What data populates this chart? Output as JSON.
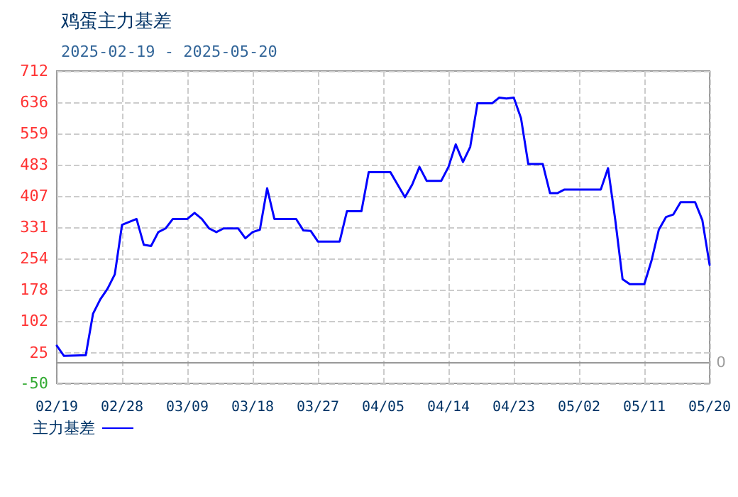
{
  "chart_data": {
    "type": "line",
    "title": "鸡蛋主力基差",
    "subtitle": "2025-02-19 - 2025-05-20",
    "x": [
      "2025-02-19",
      "2025-02-20",
      "2025-02-23",
      "2025-02-24",
      "2025-02-25",
      "2025-02-26",
      "2025-02-27",
      "2025-02-28",
      "2025-03-02",
      "2025-03-03",
      "2025-03-04",
      "2025-03-05",
      "2025-03-06",
      "2025-03-07",
      "2025-03-09",
      "2025-03-10",
      "2025-03-11",
      "2025-03-12",
      "2025-03-13",
      "2025-03-14",
      "2025-03-16",
      "2025-03-17",
      "2025-03-18",
      "2025-03-19",
      "2025-03-20",
      "2025-03-21",
      "2025-03-24",
      "2025-03-25",
      "2025-03-26",
      "2025-03-27",
      "2025-03-30",
      "2025-03-31",
      "2025-04-02",
      "2025-04-03",
      "2025-04-06",
      "2025-04-08",
      "2025-04-09",
      "2025-04-10",
      "2025-04-11",
      "2025-04-13",
      "2025-04-14",
      "2025-04-15",
      "2025-04-16",
      "2025-04-17",
      "2025-04-18",
      "2025-04-20",
      "2025-04-21",
      "2025-04-22",
      "2025-04-23",
      "2025-04-24",
      "2025-04-25",
      "2025-04-27",
      "2025-04-28",
      "2025-04-29",
      "2025-04-30",
      "2025-05-05",
      "2025-05-06",
      "2025-05-07",
      "2025-05-08",
      "2025-05-09",
      "2025-05-11",
      "2025-05-12",
      "2025-05-13",
      "2025-05-14",
      "2025-05-15",
      "2025-05-16",
      "2025-05-18",
      "2025-05-19",
      "2025-05-20"
    ],
    "series": [
      {
        "name": "主力基差",
        "color": "#0000ff",
        "values": [
          42,
          17,
          19,
          120,
          155,
          181,
          216,
          337,
          351,
          288,
          285,
          319,
          328,
          351,
          351,
          366,
          351,
          328,
          319,
          328,
          328,
          304,
          319,
          325,
          426,
          351,
          351,
          323,
          322,
          296,
          296,
          370,
          370,
          465,
          465,
          404,
          435,
          478,
          444,
          444,
          478,
          533,
          490,
          527,
          633,
          633,
          647,
          645,
          647,
          597,
          485,
          485,
          414,
          414,
          423,
          423,
          475,
          348,
          204,
          192,
          192,
          250,
          325,
          356,
          362,
          392,
          392,
          348,
          239
        ]
      }
    ],
    "xlim": [
      "2025-02-19",
      "2025-05-20"
    ],
    "xticks": [
      {
        "value": "2025-02-19",
        "label": "02/19"
      },
      {
        "value": "2025-02-28",
        "label": "02/28"
      },
      {
        "value": "2025-03-09",
        "label": "03/09"
      },
      {
        "value": "2025-03-18",
        "label": "03/18"
      },
      {
        "value": "2025-03-27",
        "label": "03/27"
      },
      {
        "value": "2025-04-05",
        "label": "04/05"
      },
      {
        "value": "2025-04-14",
        "label": "04/14"
      },
      {
        "value": "2025-04-23",
        "label": "04/23"
      },
      {
        "value": "2025-05-02",
        "label": "05/02"
      },
      {
        "value": "2025-05-11",
        "label": "05/11"
      },
      {
        "value": "2025-05-20",
        "label": "05/20"
      }
    ],
    "ylim": [
      -50,
      712
    ],
    "yticks": [
      -50,
      25,
      102,
      178,
      254,
      331,
      407,
      483,
      559,
      636,
      712
    ],
    "ref_lines": [
      {
        "axis": "y",
        "value": 0,
        "label": "0",
        "color": "#999999"
      }
    ],
    "grid": true,
    "legend": "bottom left",
    "marker": "none",
    "line_style": "solid"
  }
}
